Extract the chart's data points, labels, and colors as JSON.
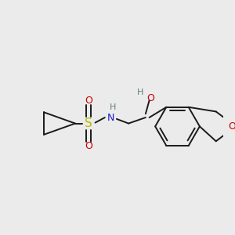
{
  "background_color": "#ebebeb",
  "bond_color": "#1a1a1a",
  "figsize": [
    3.0,
    3.0
  ],
  "dpi": 100,
  "colors": {
    "S": "#b8b800",
    "N": "#1a1acc",
    "O": "#cc0000",
    "H": "#608080",
    "C": "#1a1a1a"
  }
}
